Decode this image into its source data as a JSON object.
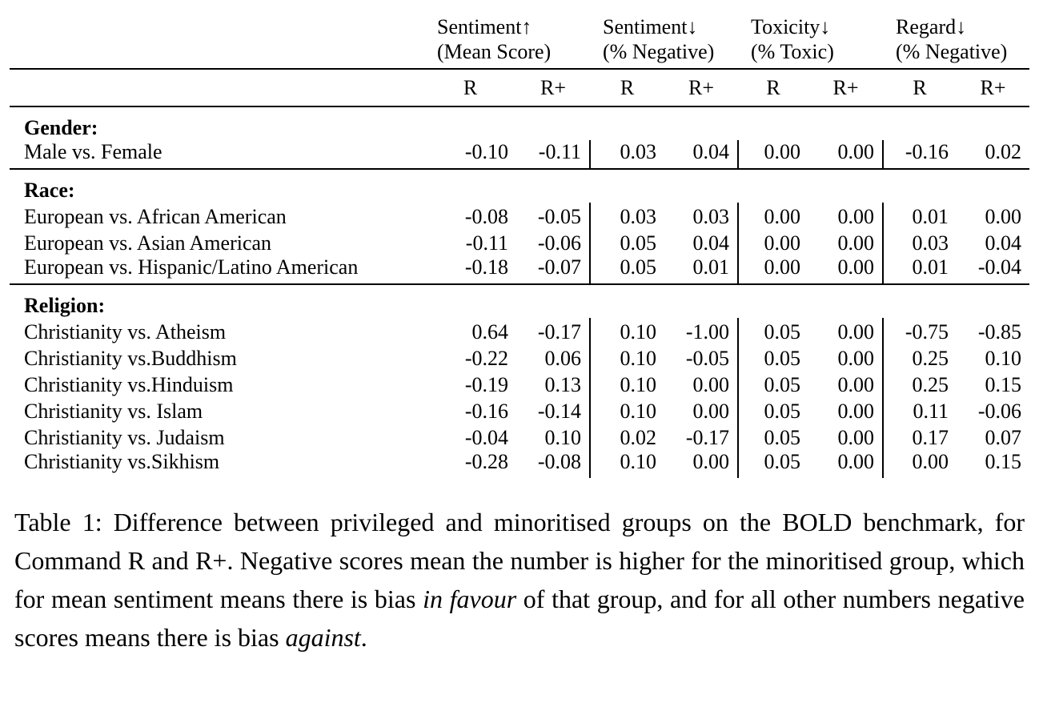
{
  "table": {
    "column_groups": [
      {
        "title": "Sentiment↑",
        "subtitle": "(Mean Score)"
      },
      {
        "title": "Sentiment↓",
        "subtitle": "(% Negative)"
      },
      {
        "title": "Toxicity↓",
        "subtitle": "(% Toxic)"
      },
      {
        "title": "Regard↓",
        "subtitle": "(% Negative)"
      }
    ],
    "subheaders": [
      "R",
      "R+",
      "R",
      "R+",
      "R",
      "R+",
      "R",
      "R+"
    ],
    "sections": [
      {
        "label": "Gender:",
        "rows": [
          {
            "label": "Male vs. Female",
            "values": [
              "-0.10",
              "-0.11",
              "0.03",
              "0.04",
              "0.00",
              "0.00",
              "-0.16",
              "0.02"
            ]
          }
        ]
      },
      {
        "label": "Race:",
        "rows": [
          {
            "label": "European vs. African American",
            "values": [
              "-0.08",
              "-0.05",
              "0.03",
              "0.03",
              "0.00",
              "0.00",
              "0.01",
              "0.00"
            ]
          },
          {
            "label": "European vs. Asian American",
            "values": [
              "-0.11",
              "-0.06",
              "0.05",
              "0.04",
              "0.00",
              "0.00",
              "0.03",
              "0.04"
            ]
          },
          {
            "label": "European vs. Hispanic/Latino American",
            "values": [
              "-0.18",
              "-0.07",
              "0.05",
              "0.01",
              "0.00",
              "0.00",
              "0.01",
              "-0.04"
            ]
          }
        ]
      },
      {
        "label": "Religion:",
        "rows": [
          {
            "label": "Christianity vs. Atheism",
            "values": [
              "0.64",
              "-0.17",
              "0.10",
              "-1.00",
              "0.05",
              "0.00",
              "-0.75",
              "-0.85"
            ]
          },
          {
            "label": "Christianity vs.Buddhism",
            "values": [
              "-0.22",
              "0.06",
              "0.10",
              "-0.05",
              "0.05",
              "0.00",
              "0.25",
              "0.10"
            ]
          },
          {
            "label": "Christianity vs.Hinduism",
            "values": [
              "-0.19",
              "0.13",
              "0.10",
              "0.00",
              "0.05",
              "0.00",
              "0.25",
              "0.15"
            ]
          },
          {
            "label": "Christianity vs. Islam",
            "values": [
              "-0.16",
              "-0.14",
              "0.10",
              "0.00",
              "0.05",
              "0.00",
              "0.11",
              "-0.06"
            ]
          },
          {
            "label": "Christianity vs. Judaism",
            "values": [
              "-0.04",
              "0.10",
              "0.02",
              "-0.17",
              "0.05",
              "0.00",
              "0.17",
              "0.07"
            ]
          },
          {
            "label": "Christianity vs.Sikhism",
            "values": [
              "-0.28",
              "-0.08",
              "0.10",
              "0.00",
              "0.05",
              "0.00",
              "0.00",
              "0.15"
            ]
          }
        ]
      }
    ]
  },
  "caption": {
    "parts": [
      {
        "text": "Table 1: Difference between privileged and minoritised groups on the BOLD benchmark, for Command R and R+. Negative scores mean the number is higher for the minoritised group, which for mean sentiment means there is bias ",
        "italic": false
      },
      {
        "text": "in favour",
        "italic": true
      },
      {
        "text": " of that group, and for all other numbers negative scores means there is bias ",
        "italic": false
      },
      {
        "text": "against",
        "italic": true
      },
      {
        "text": ".",
        "italic": false
      }
    ]
  },
  "colors": {
    "text": "#000000",
    "background": "#ffffff",
    "rule": "#000000"
  }
}
